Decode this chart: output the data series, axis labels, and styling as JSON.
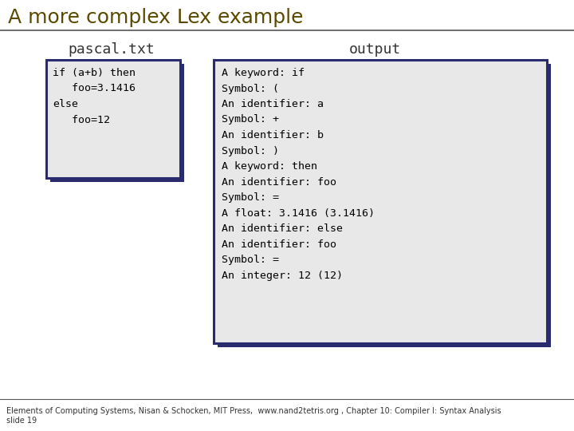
{
  "title": "A more complex Lex example",
  "title_color": "#5a4a00",
  "title_fontsize": 18,
  "bg_color": "#ffffff",
  "separator_color": "#555555",
  "pascal_label": "pascal.txt",
  "output_label": "output",
  "label_fontsize": 13,
  "label_color": "#333333",
  "pascal_code": "if (a+b) then\n   foo=3.1416\nelse\n   foo=12",
  "output_code": "A keyword: if\nSymbol: (\nAn identifier: a\nSymbol: +\nAn identifier: b\nSymbol: )\nA keyword: then\nAn identifier: foo\nSymbol: =\nA float: 3.1416 (3.1416)\nAn identifier: else\nAn identifier: foo\nSymbol: =\nAn integer: 12 (12)",
  "box_bg": "#e8e8e8",
  "box_border": "#2a2a6e",
  "code_fontsize": 9.5,
  "footer": "Elements of Computing Systems, Nisan & Schocken, MIT Press,  www.nand2tetris.org , Chapter 10: Compiler I: Syntax Analysis",
  "footer2": "slide 19",
  "footer_fontsize": 7
}
